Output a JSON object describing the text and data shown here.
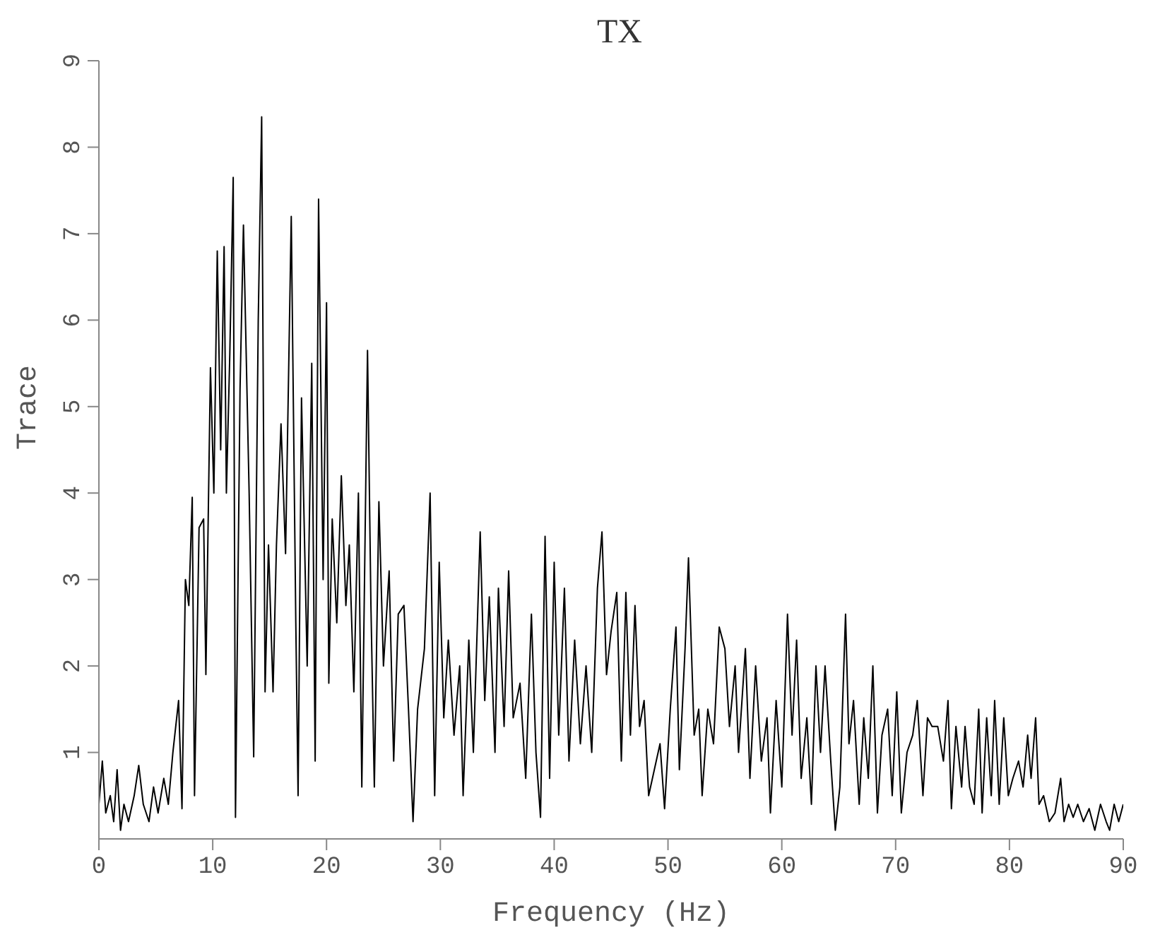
{
  "chart_data": {
    "type": "line",
    "title": "TX",
    "xlabel": "Frequency (Hz)",
    "ylabel": "Trace",
    "xlim": [
      0,
      90
    ],
    "xticks": [
      0,
      10,
      20,
      30,
      40,
      50,
      60,
      70,
      80,
      90
    ],
    "ylim": [
      0,
      9
    ],
    "yticks": [
      1,
      2,
      3,
      4,
      5,
      6,
      7,
      8,
      9
    ],
    "grid": false,
    "legend": false,
    "marker": "none",
    "line_style": "solid",
    "x": [
      0,
      0.3,
      0.6,
      1,
      1.3,
      1.6,
      1.9,
      2.2,
      2.6,
      3.1,
      3.5,
      3.9,
      4.4,
      4.8,
      5.2,
      5.7,
      6.1,
      6.5,
      7,
      7.3,
      7.6,
      7.9,
      8.2,
      8.4,
      8.8,
      9.2,
      9.4,
      9.8,
      10.1,
      10.4,
      10.7,
      11,
      11.2,
      11.5,
      11.8,
      12,
      12.4,
      12.7,
      13.2,
      13.6,
      14,
      14.3,
      14.6,
      14.9,
      15.3,
      15.6,
      16,
      16.4,
      16.9,
      17.3,
      17.5,
      17.8,
      18.3,
      18.7,
      19,
      19.3,
      19.7,
      20,
      20.2,
      20.5,
      20.9,
      21.3,
      21.7,
      22,
      22.4,
      22.8,
      23.1,
      23.6,
      23.9,
      24.2,
      24.6,
      25,
      25.5,
      25.9,
      26.3,
      26.8,
      27.2,
      27.6,
      28,
      28.6,
      29.1,
      29.5,
      29.9,
      30.3,
      30.7,
      31.2,
      31.7,
      32,
      32.5,
      32.9,
      33.5,
      33.9,
      34.3,
      34.8,
      35.1,
      35.6,
      36,
      36.4,
      37,
      37.5,
      38,
      38.4,
      38.8,
      39.2,
      39.6,
      40,
      40.4,
      40.9,
      41.3,
      41.8,
      42.3,
      42.8,
      43.3,
      43.8,
      44.2,
      44.6,
      45,
      45.5,
      45.9,
      46.3,
      46.7,
      47.1,
      47.5,
      47.9,
      48.3,
      48.8,
      49.3,
      49.7,
      50.2,
      50.7,
      51,
      51.5,
      51.8,
      52.3,
      52.7,
      53,
      53.5,
      54,
      54.5,
      55,
      55.4,
      55.9,
      56.2,
      56.8,
      57.2,
      57.7,
      58.2,
      58.7,
      59,
      59.5,
      60,
      60.5,
      60.9,
      61.3,
      61.7,
      62.2,
      62.6,
      63,
      63.4,
      63.8,
      64.3,
      64.7,
      65.1,
      65.6,
      65.9,
      66.3,
      66.8,
      67.2,
      67.6,
      68,
      68.4,
      68.8,
      69.3,
      69.7,
      70.1,
      70.5,
      71,
      71.5,
      71.9,
      72.4,
      72.8,
      73.2,
      73.7,
      74.2,
      74.6,
      74.9,
      75.3,
      75.8,
      76.1,
      76.5,
      76.9,
      77.3,
      77.6,
      78,
      78.4,
      78.7,
      79.1,
      79.5,
      79.9,
      80.3,
      80.8,
      81.2,
      81.6,
      81.9,
      82.3,
      82.6,
      83,
      83.5,
      84,
      84.5,
      84.8,
      85.2,
      85.6,
      86,
      86.5,
      87,
      87.5,
      88,
      88.5,
      88.8,
      89.2,
      89.6,
      90
    ],
    "series": [
      {
        "color": "#000000",
        "values": [
          0.4,
          0.9,
          0.3,
          0.5,
          0.2,
          0.8,
          0.1,
          0.4,
          0.2,
          0.5,
          0.85,
          0.4,
          0.2,
          0.6,
          0.3,
          0.7,
          0.4,
          1.0,
          1.6,
          0.35,
          3.0,
          2.7,
          3.95,
          0.5,
          3.6,
          3.7,
          1.9,
          5.45,
          4.0,
          6.8,
          4.5,
          6.85,
          4.0,
          5.6,
          7.65,
          0.25,
          5.2,
          7.1,
          4.0,
          0.95,
          6.0,
          8.35,
          1.7,
          3.4,
          1.7,
          3.4,
          4.8,
          3.3,
          7.2,
          2.5,
          0.5,
          5.1,
          2.0,
          5.5,
          0.9,
          7.4,
          3.0,
          6.2,
          1.8,
          3.7,
          2.5,
          4.2,
          2.7,
          3.4,
          1.7,
          4.0,
          0.6,
          5.65,
          2.7,
          0.6,
          3.9,
          2.0,
          3.1,
          0.9,
          2.6,
          2.7,
          1.5,
          0.2,
          1.5,
          2.2,
          4.0,
          0.5,
          3.2,
          1.4,
          2.3,
          1.2,
          2.0,
          0.5,
          2.3,
          1.0,
          3.55,
          1.6,
          2.8,
          1.0,
          2.9,
          1.3,
          3.1,
          1.4,
          1.8,
          0.7,
          2.6,
          1.0,
          0.25,
          3.5,
          0.7,
          3.2,
          1.2,
          2.9,
          0.9,
          2.3,
          1.1,
          2.0,
          1.0,
          2.9,
          3.55,
          1.9,
          2.4,
          2.85,
          0.9,
          2.85,
          1.2,
          2.7,
          1.3,
          1.6,
          0.5,
          0.8,
          1.1,
          0.35,
          1.5,
          2.45,
          0.8,
          2.2,
          3.25,
          1.2,
          1.5,
          0.5,
          1.5,
          1.1,
          2.45,
          2.2,
          1.3,
          2.0,
          1.0,
          2.2,
          0.7,
          2.0,
          0.9,
          1.4,
          0.3,
          1.6,
          0.6,
          2.6,
          1.2,
          2.3,
          0.7,
          1.4,
          0.4,
          2.0,
          1.0,
          2.0,
          0.9,
          0.1,
          0.6,
          2.6,
          1.1,
          1.6,
          0.4,
          1.4,
          0.7,
          2.0,
          0.3,
          1.2,
          1.5,
          0.5,
          1.7,
          0.3,
          1.0,
          1.2,
          1.6,
          0.5,
          1.4,
          1.3,
          1.3,
          0.9,
          1.6,
          0.35,
          1.3,
          0.6,
          1.3,
          0.6,
          0.4,
          1.5,
          0.3,
          1.4,
          0.5,
          1.6,
          0.4,
          1.4,
          0.5,
          0.7,
          0.9,
          0.6,
          1.2,
          0.7,
          1.4,
          0.4,
          0.5,
          0.2,
          0.3,
          0.7,
          0.2,
          0.4,
          0.25,
          0.4,
          0.2,
          0.35,
          0.1,
          0.4,
          0.2,
          0.1,
          0.4,
          0.2,
          0.4
        ]
      }
    ]
  }
}
